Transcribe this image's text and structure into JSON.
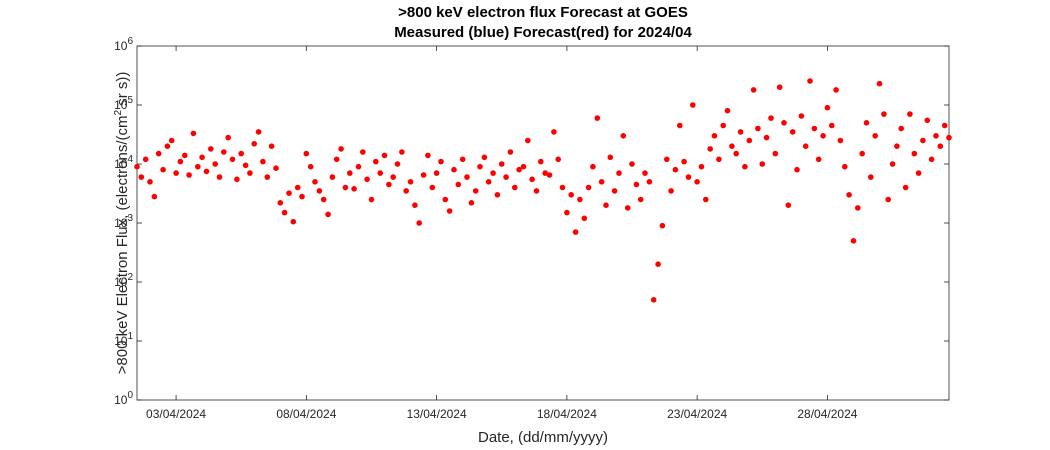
{
  "chart_data": {
    "type": "scatter",
    "title": ">800 keV electron flux Forecast at GOES",
    "subtitle": "Measured (blue) Forecast(red) for 2024/04",
    "xlabel": "Date, (dd/mm/yyyy)",
    "ylabel_prefix": ">800 keV Electron Flux, (electrons/(cm",
    "ylabel_sup": "2",
    "ylabel_suffix": " sr s))",
    "y_scale": "log",
    "ylim": [
      1,
      1000000
    ],
    "xlim": [
      "2024-04-01T12:00",
      "2024-05-02T16:00"
    ],
    "x_ticks": [
      "03/04/2024",
      "08/04/2024",
      "13/04/2024",
      "18/04/2024",
      "23/04/2024",
      "28/04/2024"
    ],
    "y_tick_base": "10",
    "y_tick_exponents": [
      "0",
      "1",
      "2",
      "3",
      "4",
      "5",
      "6"
    ],
    "grid": false,
    "series": [
      {
        "color": "#ff0000",
        "points": [
          [
            "2024-04-01T12:00",
            9000
          ],
          [
            "2024-04-01T16:00",
            6000
          ],
          [
            "2024-04-01T20:00",
            12000
          ],
          [
            "2024-04-02T00:00",
            5000
          ],
          [
            "2024-04-02T04:00",
            2800
          ],
          [
            "2024-04-02T08:00",
            15000
          ],
          [
            "2024-04-02T12:00",
            8000
          ],
          [
            "2024-04-02T16:00",
            20000
          ],
          [
            "2024-04-02T20:00",
            25000
          ],
          [
            "2024-04-03T00:00",
            7000
          ],
          [
            "2024-04-03T04:00",
            11000
          ],
          [
            "2024-04-03T08:00",
            14000
          ],
          [
            "2024-04-03T12:00",
            6500
          ],
          [
            "2024-04-03T16:00",
            33000
          ],
          [
            "2024-04-03T20:00",
            9000
          ],
          [
            "2024-04-04T00:00",
            13000
          ],
          [
            "2024-04-04T04:00",
            7500
          ],
          [
            "2024-04-04T08:00",
            18000
          ],
          [
            "2024-04-04T12:00",
            10000
          ],
          [
            "2024-04-04T16:00",
            6000
          ],
          [
            "2024-04-04T20:00",
            16000
          ],
          [
            "2024-04-05T00:00",
            28000
          ],
          [
            "2024-04-05T04:00",
            12000
          ],
          [
            "2024-04-05T08:00",
            5500
          ],
          [
            "2024-04-05T12:00",
            15000
          ],
          [
            "2024-04-05T16:00",
            9500
          ],
          [
            "2024-04-05T20:00",
            7000
          ],
          [
            "2024-04-06T00:00",
            22000
          ],
          [
            "2024-04-06T04:00",
            35000
          ],
          [
            "2024-04-06T08:00",
            11000
          ],
          [
            "2024-04-06T12:00",
            6000
          ],
          [
            "2024-04-06T16:00",
            20000
          ],
          [
            "2024-04-06T20:00",
            8500
          ],
          [
            "2024-04-07T00:00",
            2200
          ],
          [
            "2024-04-07T04:00",
            1500
          ],
          [
            "2024-04-07T08:00",
            3200
          ],
          [
            "2024-04-07T12:00",
            1050
          ],
          [
            "2024-04-07T16:00",
            4000
          ],
          [
            "2024-04-07T20:00",
            2800
          ],
          [
            "2024-04-08T00:00",
            15000
          ],
          [
            "2024-04-08T04:00",
            9000
          ],
          [
            "2024-04-08T08:00",
            5000
          ],
          [
            "2024-04-08T12:00",
            3500
          ],
          [
            "2024-04-08T16:00",
            2500
          ],
          [
            "2024-04-08T20:00",
            1400
          ],
          [
            "2024-04-09T00:00",
            6000
          ],
          [
            "2024-04-09T04:00",
            12000
          ],
          [
            "2024-04-09T08:00",
            18000
          ],
          [
            "2024-04-09T12:00",
            4000
          ],
          [
            "2024-04-09T16:00",
            7000
          ],
          [
            "2024-04-09T20:00",
            3800
          ],
          [
            "2024-04-10T00:00",
            9000
          ],
          [
            "2024-04-10T04:00",
            16000
          ],
          [
            "2024-04-10T08:00",
            5500
          ],
          [
            "2024-04-10T12:00",
            2500
          ],
          [
            "2024-04-10T16:00",
            11000
          ],
          [
            "2024-04-10T20:00",
            7000
          ],
          [
            "2024-04-11T00:00",
            14000
          ],
          [
            "2024-04-11T04:00",
            4500
          ],
          [
            "2024-04-11T08:00",
            6000
          ],
          [
            "2024-04-11T12:00",
            10000
          ],
          [
            "2024-04-11T16:00",
            16000
          ],
          [
            "2024-04-11T20:00",
            3500
          ],
          [
            "2024-04-12T00:00",
            5000
          ],
          [
            "2024-04-12T04:00",
            2000
          ],
          [
            "2024-04-12T08:00",
            1000
          ],
          [
            "2024-04-12T12:00",
            6500
          ],
          [
            "2024-04-12T16:00",
            14000
          ],
          [
            "2024-04-12T20:00",
            4000
          ],
          [
            "2024-04-13T00:00",
            7000
          ],
          [
            "2024-04-13T04:00",
            11000
          ],
          [
            "2024-04-13T08:00",
            2500
          ],
          [
            "2024-04-13T12:00",
            1600
          ],
          [
            "2024-04-13T16:00",
            8000
          ],
          [
            "2024-04-13T20:00",
            4500
          ],
          [
            "2024-04-14T00:00",
            12000
          ],
          [
            "2024-04-14T04:00",
            6000
          ],
          [
            "2024-04-14T08:00",
            2200
          ],
          [
            "2024-04-14T12:00",
            3500
          ],
          [
            "2024-04-14T16:00",
            9000
          ],
          [
            "2024-04-14T20:00",
            13000
          ],
          [
            "2024-04-15T00:00",
            5000
          ],
          [
            "2024-04-15T04:00",
            7000
          ],
          [
            "2024-04-15T08:00",
            3000
          ],
          [
            "2024-04-15T12:00",
            10000
          ],
          [
            "2024-04-15T16:00",
            6000
          ],
          [
            "2024-04-15T20:00",
            16000
          ],
          [
            "2024-04-16T00:00",
            4000
          ],
          [
            "2024-04-16T04:00",
            8000
          ],
          [
            "2024-04-16T08:00",
            9000
          ],
          [
            "2024-04-16T12:00",
            25000
          ],
          [
            "2024-04-16T16:00",
            5500
          ],
          [
            "2024-04-16T20:00",
            3500
          ],
          [
            "2024-04-17T00:00",
            11000
          ],
          [
            "2024-04-17T04:00",
            7000
          ],
          [
            "2024-04-17T08:00",
            6500
          ],
          [
            "2024-04-17T12:00",
            35000
          ],
          [
            "2024-04-17T16:00",
            12000
          ],
          [
            "2024-04-17T20:00",
            4000
          ],
          [
            "2024-04-18T00:00",
            1500
          ],
          [
            "2024-04-18T04:00",
            3000
          ],
          [
            "2024-04-18T08:00",
            700
          ],
          [
            "2024-04-18T12:00",
            2500
          ],
          [
            "2024-04-18T16:00",
            1200
          ],
          [
            "2024-04-18T20:00",
            4000
          ],
          [
            "2024-04-19T00:00",
            9000
          ],
          [
            "2024-04-19T04:00",
            60000
          ],
          [
            "2024-04-19T08:00",
            5000
          ],
          [
            "2024-04-19T12:00",
            2000
          ],
          [
            "2024-04-19T16:00",
            13000
          ],
          [
            "2024-04-19T20:00",
            3500
          ],
          [
            "2024-04-20T00:00",
            7000
          ],
          [
            "2024-04-20T04:00",
            30000
          ],
          [
            "2024-04-20T08:00",
            1800
          ],
          [
            "2024-04-20T12:00",
            10000
          ],
          [
            "2024-04-20T16:00",
            4500
          ],
          [
            "2024-04-20T20:00",
            2500
          ],
          [
            "2024-04-21T00:00",
            7000
          ],
          [
            "2024-04-21T04:00",
            5000
          ],
          [
            "2024-04-21T08:00",
            50
          ],
          [
            "2024-04-21T12:00",
            200
          ],
          [
            "2024-04-21T16:00",
            900
          ],
          [
            "2024-04-21T20:00",
            12000
          ],
          [
            "2024-04-22T00:00",
            3500
          ],
          [
            "2024-04-22T04:00",
            8000
          ],
          [
            "2024-04-22T08:00",
            45000
          ],
          [
            "2024-04-22T12:00",
            11000
          ],
          [
            "2024-04-22T16:00",
            6000
          ],
          [
            "2024-04-22T20:00",
            100000
          ],
          [
            "2024-04-23T00:00",
            5000
          ],
          [
            "2024-04-23T04:00",
            9000
          ],
          [
            "2024-04-23T08:00",
            2500
          ],
          [
            "2024-04-23T12:00",
            18000
          ],
          [
            "2024-04-23T16:00",
            30000
          ],
          [
            "2024-04-23T20:00",
            12000
          ],
          [
            "2024-04-24T00:00",
            45000
          ],
          [
            "2024-04-24T04:00",
            80000
          ],
          [
            "2024-04-24T08:00",
            20000
          ],
          [
            "2024-04-24T12:00",
            15000
          ],
          [
            "2024-04-24T16:00",
            35000
          ],
          [
            "2024-04-24T20:00",
            9000
          ],
          [
            "2024-04-25T00:00",
            25000
          ],
          [
            "2024-04-25T04:00",
            180000
          ],
          [
            "2024-04-25T08:00",
            40000
          ],
          [
            "2024-04-25T12:00",
            10000
          ],
          [
            "2024-04-25T16:00",
            28000
          ],
          [
            "2024-04-25T20:00",
            60000
          ],
          [
            "2024-04-26T00:00",
            15000
          ],
          [
            "2024-04-26T04:00",
            200000
          ],
          [
            "2024-04-26T08:00",
            50000
          ],
          [
            "2024-04-26T12:00",
            2000
          ],
          [
            "2024-04-26T16:00",
            35000
          ],
          [
            "2024-04-26T20:00",
            8000
          ],
          [
            "2024-04-27T00:00",
            65000
          ],
          [
            "2024-04-27T04:00",
            20000
          ],
          [
            "2024-04-27T08:00",
            255000
          ],
          [
            "2024-04-27T12:00",
            40000
          ],
          [
            "2024-04-27T16:00",
            12000
          ],
          [
            "2024-04-27T20:00",
            30000
          ],
          [
            "2024-04-28T00:00",
            90000
          ],
          [
            "2024-04-28T04:00",
            45000
          ],
          [
            "2024-04-28T08:00",
            180000
          ],
          [
            "2024-04-28T12:00",
            25000
          ],
          [
            "2024-04-28T16:00",
            9000
          ],
          [
            "2024-04-28T20:00",
            3000
          ],
          [
            "2024-04-29T00:00",
            500
          ],
          [
            "2024-04-29T04:00",
            1800
          ],
          [
            "2024-04-29T08:00",
            15000
          ],
          [
            "2024-04-29T12:00",
            50000
          ],
          [
            "2024-04-29T16:00",
            6000
          ],
          [
            "2024-04-29T20:00",
            30000
          ],
          [
            "2024-04-30T00:00",
            230000
          ],
          [
            "2024-04-30T04:00",
            70000
          ],
          [
            "2024-04-30T08:00",
            2500
          ],
          [
            "2024-04-30T12:00",
            10000
          ],
          [
            "2024-04-30T16:00",
            20000
          ],
          [
            "2024-04-30T20:00",
            40000
          ],
          [
            "2024-05-01T00:00",
            4000
          ],
          [
            "2024-05-01T04:00",
            70000
          ],
          [
            "2024-05-01T08:00",
            15000
          ],
          [
            "2024-05-01T12:00",
            7000
          ],
          [
            "2024-05-01T16:00",
            25000
          ],
          [
            "2024-05-01T20:00",
            55000
          ],
          [
            "2024-05-02T00:00",
            12000
          ],
          [
            "2024-05-02T04:00",
            30000
          ],
          [
            "2024-05-02T08:00",
            20000
          ],
          [
            "2024-05-02T12:00",
            45000
          ],
          [
            "2024-05-02T16:00",
            28000
          ]
        ]
      }
    ]
  }
}
